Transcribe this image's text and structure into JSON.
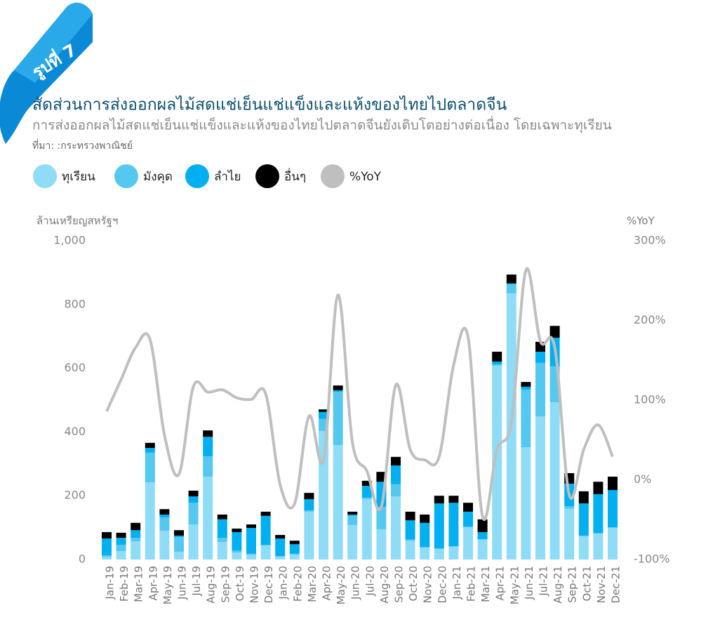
{
  "chart_data": {
    "type": "bar",
    "figure_label": "รูปที่ 7",
    "title": "สัดส่วนการส่งออกผลไม้สดแช่เย็นแช่แข็งและแห้งของไทยไปตลาดจีน",
    "subtitle": "การส่งออกผลไม้สดแช่เย็นแช่แข็งและแห้งของไทยไปตลาดจีนยังเติบโตอย่างต่อเนื่อง โดยเฉพาะทุเรียน",
    "source": "ที่มา: :กระทรวงพาณิชย์",
    "y_label": "ล้านเหรียญสหรัฐฯ",
    "y2_label": "%YoY",
    "categories": [
      "Jan-19",
      "Feb-19",
      "Mar-19",
      "Apr-19",
      "May-19",
      "Jun-19",
      "Jul-19",
      "Aug-19",
      "Sep-19",
      "Oct-19",
      "Nov-19",
      "Dec-19",
      "Jan-20",
      "Feb-20",
      "Mar-20",
      "Apr-20",
      "May-20",
      "Jun-20",
      "Jul-20",
      "Aug-20",
      "Sep-20",
      "Oct-20",
      "Nov-20",
      "Dec-20",
      "Jan-21",
      "Feb-21",
      "Mar-21",
      "Apr-21",
      "May-21",
      "Jun-21",
      "Jul-21",
      "Aug-21",
      "Sep-21",
      "Oct-21",
      "Nov-21",
      "Dec-21"
    ],
    "series": [
      {
        "name": "ทุเรียน",
        "color": "#8fdcf7",
        "values": [
          8,
          26,
          57,
          242,
          90,
          24,
          110,
          260,
          55,
          22,
          15,
          44,
          9,
          15,
          150,
          403,
          359,
          108,
          190,
          95,
          198,
          59,
          37,
          33,
          40,
          101,
          62,
          608,
          835,
          352,
          449,
          493,
          159,
          73,
          81,
          99
        ]
      },
      {
        "name": "มังคุด",
        "color": "#55c8ef",
        "values": [
          5,
          20,
          11,
          93,
          42,
          46,
          68,
          64,
          13,
          6,
          3,
          2,
          2,
          3,
          4,
          38,
          167,
          29,
          4,
          70,
          38,
          4,
          2,
          2,
          2,
          2,
          2,
          4,
          29,
          181,
          168,
          113,
          8,
          2,
          2,
          2
        ]
      },
      {
        "name": "ลำไย",
        "color": "#00b0f0",
        "values": [
          53,
          22,
          24,
          15,
          9,
          5,
          20,
          61,
          58,
          58,
          81,
          91,
          55,
          30,
          35,
          22,
          5,
          4,
          37,
          79,
          59,
          60,
          76,
          141,
          136,
          47,
          22,
          9,
          2,
          9,
          35,
          90,
          71,
          101,
          122,
          117
        ]
      },
      {
        "name": "อื่นๆ",
        "color": "#000000",
        "values": [
          20,
          16,
          23,
          16,
          17,
          17,
          18,
          20,
          15,
          11,
          11,
          13,
          11,
          11,
          20,
          8,
          15,
          9,
          16,
          31,
          27,
          27,
          26,
          24,
          22,
          28,
          40,
          31,
          28,
          15,
          31,
          37,
          33,
          38,
          39,
          42
        ]
      },
      {
        "name": "%YoY",
        "color": "#bfbfbf",
        "axis": "y2",
        "values": [
          86,
          126,
          166,
          176,
          56,
          7,
          117,
          110,
          113,
          103,
          101,
          108,
          -6,
          -30,
          80,
          25,
          232,
          47,
          11,
          -34,
          119,
          38,
          25,
          29,
          144,
          179,
          -46,
          38,
          73,
          263,
          174,
          166,
          -19,
          38,
          69,
          29
        ]
      }
    ],
    "ylim": [
      0,
      1000
    ],
    "yticks": [
      0,
      200,
      400,
      600,
      800,
      {
        "value": 1000,
        "label": "1,000"
      }
    ],
    "y2lim": [
      -100,
      300
    ],
    "y2ticks": [
      {
        "value": -100,
        "label": "-100%"
      },
      {
        "value": 0,
        "label": "0%"
      },
      {
        "value": 100,
        "label": "100%"
      },
      {
        "value": 200,
        "label": "200%"
      },
      {
        "value": 300,
        "label": "300%"
      }
    ]
  }
}
